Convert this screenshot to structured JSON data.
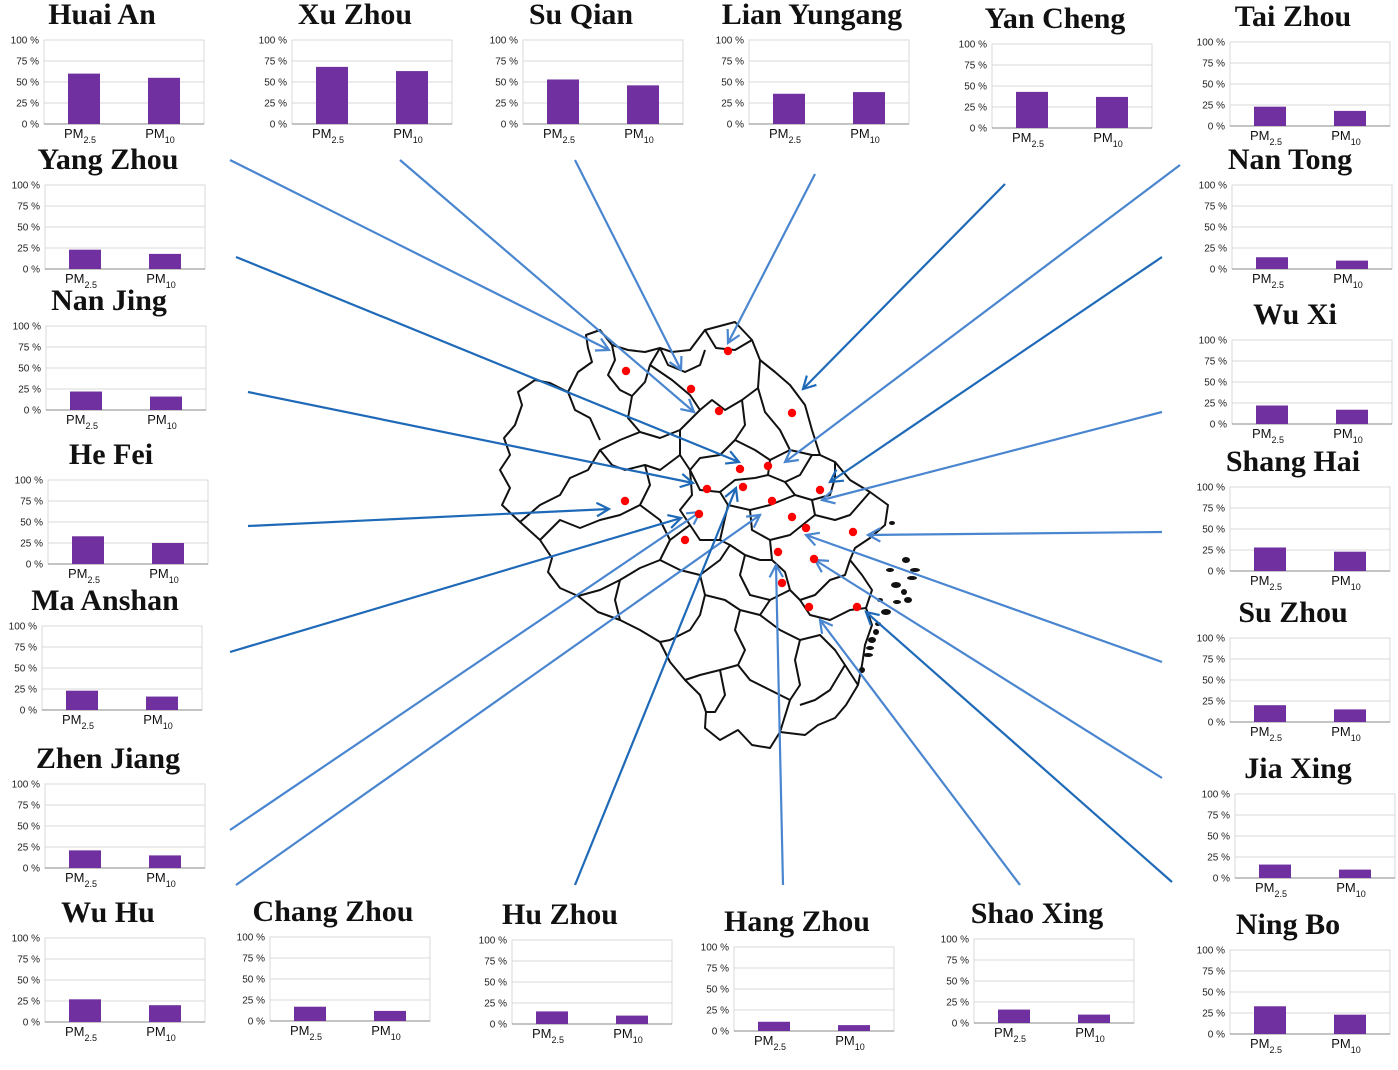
{
  "chart_data": [
    {
      "type": "bar",
      "city": "Huai An",
      "categories": [
        "PM2.5",
        "PM10"
      ],
      "values": [
        60,
        55
      ],
      "ylim": [
        0,
        100
      ],
      "yticks": [
        "0 %",
        "25 %",
        "50 %",
        "75 %",
        "100 %"
      ]
    },
    {
      "type": "bar",
      "city": "Xu Zhou",
      "categories": [
        "PM2.5",
        "PM10"
      ],
      "values": [
        68,
        63
      ],
      "ylim": [
        0,
        100
      ],
      "yticks": [
        "0 %",
        "25 %",
        "50 %",
        "75 %",
        "100 %"
      ]
    },
    {
      "type": "bar",
      "city": "Su Qian",
      "categories": [
        "PM2.5",
        "PM10"
      ],
      "values": [
        53,
        46
      ],
      "ylim": [
        0,
        100
      ],
      "yticks": [
        "0 %",
        "25 %",
        "50 %",
        "75 %",
        "100 %"
      ]
    },
    {
      "type": "bar",
      "city": "Lian Yungang",
      "categories": [
        "PM2.5",
        "PM10"
      ],
      "values": [
        36,
        38
      ],
      "ylim": [
        0,
        100
      ],
      "yticks": [
        "0 %",
        "25 %",
        "50 %",
        "75 %",
        "100 %"
      ]
    },
    {
      "type": "bar",
      "city": "Yan Cheng",
      "categories": [
        "PM2.5",
        "PM10"
      ],
      "values": [
        43,
        37
      ],
      "ylim": [
        0,
        100
      ],
      "yticks": [
        "0 %",
        "25 %",
        "50 %",
        "75 %",
        "100 %"
      ]
    },
    {
      "type": "bar",
      "city": "Tai Zhou",
      "categories": [
        "PM2.5",
        "PM10"
      ],
      "values": [
        23,
        18
      ],
      "ylim": [
        0,
        100
      ],
      "yticks": [
        "0 %",
        "25 %",
        "50 %",
        "75 %",
        "100 %"
      ]
    },
    {
      "type": "bar",
      "city": "Yang Zhou",
      "categories": [
        "PM2.5",
        "PM10"
      ],
      "values": [
        23,
        18
      ],
      "ylim": [
        0,
        100
      ],
      "yticks": [
        "0 %",
        "25 %",
        "50 %",
        "75 %",
        "100 %"
      ]
    },
    {
      "type": "bar",
      "city": "Nan Tong",
      "categories": [
        "PM2.5",
        "PM10"
      ],
      "values": [
        14,
        10
      ],
      "ylim": [
        0,
        100
      ],
      "yticks": [
        "0 %",
        "25 %",
        "50 %",
        "75 %",
        "100 %"
      ]
    },
    {
      "type": "bar",
      "city": "Nan Jing",
      "categories": [
        "PM2.5",
        "PM10"
      ],
      "values": [
        22,
        16
      ],
      "ylim": [
        0,
        100
      ],
      "yticks": [
        "0 %",
        "25 %",
        "50 %",
        "75 %",
        "100 %"
      ]
    },
    {
      "type": "bar",
      "city": "Wu Xi",
      "categories": [
        "PM2.5",
        "PM10"
      ],
      "values": [
        22,
        17
      ],
      "ylim": [
        0,
        100
      ],
      "yticks": [
        "0 %",
        "25 %",
        "50 %",
        "75 %",
        "100 %"
      ]
    },
    {
      "type": "bar",
      "city": "He Fei",
      "categories": [
        "PM2.5",
        "PM10"
      ],
      "values": [
        33,
        25
      ],
      "ylim": [
        0,
        100
      ],
      "yticks": [
        "0 %",
        "25 %",
        "50 %",
        "75 %",
        "100 %"
      ]
    },
    {
      "type": "bar",
      "city": "Shang Hai",
      "categories": [
        "PM2.5",
        "PM10"
      ],
      "values": [
        28,
        23
      ],
      "ylim": [
        0,
        100
      ],
      "yticks": [
        "0 %",
        "25 %",
        "50 %",
        "75 %",
        "100 %"
      ]
    },
    {
      "type": "bar",
      "city": "Ma Anshan",
      "categories": [
        "PM2.5",
        "PM10"
      ],
      "values": [
        23,
        16
      ],
      "ylim": [
        0,
        100
      ],
      "yticks": [
        "0 %",
        "25 %",
        "50 %",
        "75 %",
        "100 %"
      ]
    },
    {
      "type": "bar",
      "city": "Su Zhou",
      "categories": [
        "PM2.5",
        "PM10"
      ],
      "values": [
        20,
        15
      ],
      "ylim": [
        0,
        100
      ],
      "yticks": [
        "0 %",
        "25 %",
        "50 %",
        "75 %",
        "100 %"
      ]
    },
    {
      "type": "bar",
      "city": "Zhen Jiang",
      "categories": [
        "PM2.5",
        "PM10"
      ],
      "values": [
        21,
        15
      ],
      "ylim": [
        0,
        100
      ],
      "yticks": [
        "0 %",
        "25 %",
        "50 %",
        "75 %",
        "100 %"
      ]
    },
    {
      "type": "bar",
      "city": "Jia Xing",
      "categories": [
        "PM2.5",
        "PM10"
      ],
      "values": [
        16,
        10
      ],
      "ylim": [
        0,
        100
      ],
      "yticks": [
        "0 %",
        "25 %",
        "50 %",
        "75 %",
        "100 %"
      ]
    },
    {
      "type": "bar",
      "city": "Wu Hu",
      "categories": [
        "PM2.5",
        "PM10"
      ],
      "values": [
        27,
        20
      ],
      "ylim": [
        0,
        100
      ],
      "yticks": [
        "0 %",
        "25 %",
        "50 %",
        "75 %",
        "100 %"
      ]
    },
    {
      "type": "bar",
      "city": "Chang Zhou",
      "categories": [
        "PM2.5",
        "PM10"
      ],
      "values": [
        17,
        12
      ],
      "ylim": [
        0,
        100
      ],
      "yticks": [
        "0 %",
        "25 %",
        "50 %",
        "75 %",
        "100 %"
      ]
    },
    {
      "type": "bar",
      "city": "Hu Zhou",
      "categories": [
        "PM2.5",
        "PM10"
      ],
      "values": [
        15,
        10
      ],
      "ylim": [
        0,
        100
      ],
      "yticks": [
        "0 %",
        "25 %",
        "50 %",
        "75 %",
        "100 %"
      ]
    },
    {
      "type": "bar",
      "city": "Hang Zhou",
      "categories": [
        "PM2.5",
        "PM10"
      ],
      "values": [
        11,
        7
      ],
      "ylim": [
        0,
        100
      ],
      "yticks": [
        "0 %",
        "25 %",
        "50 %",
        "75 %",
        "100 %"
      ]
    },
    {
      "type": "bar",
      "city": "Shao Xing",
      "categories": [
        "PM2.5",
        "PM10"
      ],
      "values": [
        16,
        10
      ],
      "ylim": [
        0,
        100
      ],
      "yticks": [
        "0 %",
        "25 %",
        "50 %",
        "75 %",
        "100 %"
      ]
    },
    {
      "type": "bar",
      "city": "Ning Bo",
      "categories": [
        "PM2.5",
        "PM10"
      ],
      "values": [
        33,
        23
      ],
      "ylim": [
        0,
        100
      ],
      "yticks": [
        "0 %",
        "25 %",
        "50 %",
        "75 %",
        "100 %"
      ]
    }
  ],
  "colors": {
    "bar": "#7030a0",
    "arrow": "#4a86d0",
    "arrow_dark": "#1f6ab8",
    "dot": "#ff0000",
    "grid": "#d9d9d9",
    "map_outline": "#111111"
  }
}
